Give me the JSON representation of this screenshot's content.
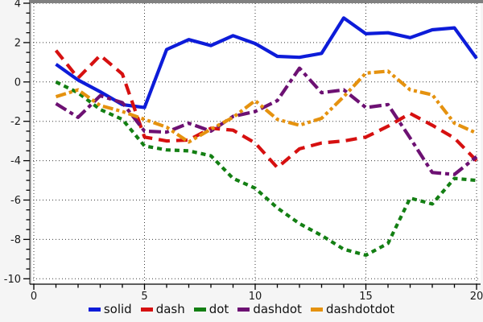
{
  "chart_data": {
    "type": "line",
    "title": "",
    "xlabel": "",
    "ylabel": "",
    "x": [
      1,
      2,
      3,
      4,
      5,
      6,
      7,
      8,
      9,
      10,
      11,
      12,
      13,
      14,
      15,
      16,
      17,
      18,
      19,
      20
    ],
    "series": [
      {
        "name": "solid",
        "color": "#0d1cd9",
        "dash": "solid",
        "values": [
          0.9,
          0.1,
          -0.5,
          -1.15,
          -1.3,
          1.65,
          2.15,
          1.85,
          2.35,
          1.95,
          1.3,
          1.25,
          1.45,
          3.25,
          2.45,
          2.5,
          2.25,
          2.65,
          2.75,
          1.2
        ]
      },
      {
        "name": "dash",
        "color": "#d61010",
        "dash": "dash",
        "values": [
          1.6,
          0.2,
          1.35,
          0.4,
          -2.8,
          -3.0,
          -2.95,
          -2.35,
          -2.45,
          -3.1,
          -4.35,
          -3.4,
          -3.1,
          -3.0,
          -2.8,
          -2.25,
          -1.6,
          -2.2,
          -2.85,
          -4.0
        ]
      },
      {
        "name": "dot",
        "color": "#137f13",
        "dash": "dot",
        "values": [
          0.0,
          -0.55,
          -1.4,
          -1.9,
          -3.25,
          -3.45,
          -3.5,
          -3.75,
          -4.9,
          -5.4,
          -6.4,
          -7.2,
          -7.8,
          -8.5,
          -8.8,
          -8.2,
          -5.9,
          -6.2,
          -4.9,
          -5.0
        ]
      },
      {
        "name": "dashdot",
        "color": "#6d1173",
        "dash": "dashdot",
        "values": [
          -1.1,
          -1.8,
          -0.7,
          -1.05,
          -2.5,
          -2.55,
          -2.1,
          -2.5,
          -1.75,
          -1.5,
          -0.95,
          0.7,
          -0.55,
          -0.4,
          -1.3,
          -1.15,
          -2.85,
          -4.6,
          -4.7,
          -3.8
        ]
      },
      {
        "name": "dashdotdot",
        "color": "#e5920f",
        "dash": "dashdotdot",
        "values": [
          -0.75,
          -0.4,
          -1.2,
          -1.5,
          -1.9,
          -2.3,
          -3.05,
          -2.4,
          -1.8,
          -0.95,
          -1.9,
          -2.2,
          -1.85,
          -0.75,
          0.45,
          0.55,
          -0.4,
          -0.65,
          -2.1,
          -2.6
        ]
      }
    ],
    "xlim": [
      0,
      20.3
    ],
    "ylim": [
      -10.3,
      4.15
    ],
    "x_major_ticks": [
      0,
      5,
      10,
      15,
      20
    ],
    "x_tick_labels": [
      "0",
      "5",
      "10",
      "15",
      "20"
    ],
    "x_minor_step": 1,
    "y_major_ticks": [
      4,
      2,
      0,
      -2,
      -4,
      -6,
      -8,
      -10
    ],
    "y_tick_labels": [
      "4",
      "2",
      "0",
      "-2",
      "-4",
      "-6",
      "-8",
      "-10"
    ],
    "y_minor_step": 0.5,
    "grid": true,
    "legend_position": "bottom",
    "legend_labels": [
      "solid",
      "dash",
      "dot",
      "dashdot",
      "dashdotdot"
    ]
  },
  "style_colors": {
    "page_bg": "#f5f5f5",
    "plot_bg": "#ffffff",
    "grid_color": "#3a3a3a",
    "axis_color": "#000000",
    "spine_gray": "#808080",
    "tick_label_color": "#1a1a1a"
  }
}
